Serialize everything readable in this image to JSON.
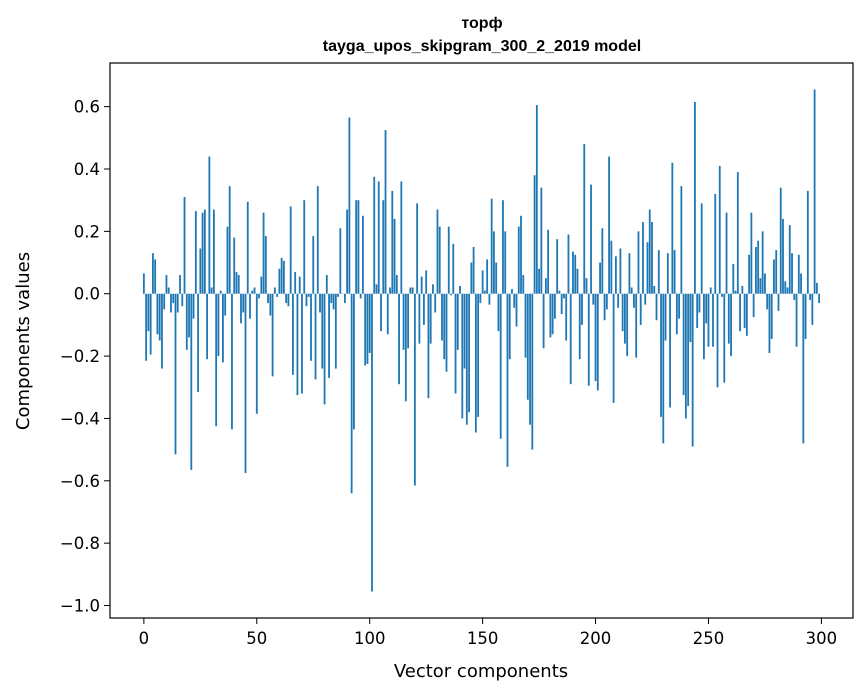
{
  "chart_data": {
    "type": "bar",
    "title_line1": "торф",
    "title_line2": "tayga_upos_skipgram_300_2_2019 model",
    "xlabel": "Vector components",
    "ylabel": "Components values",
    "xlim": [
      -15,
      314
    ],
    "ylim": [
      -1.04,
      0.74
    ],
    "xticks": [
      0,
      50,
      100,
      150,
      200,
      250,
      300
    ],
    "yticks": [
      -1.0,
      -0.8,
      -0.6,
      -0.4,
      -0.2,
      0.0,
      0.2,
      0.4,
      0.6
    ],
    "ytick_labels": [
      "−1.0",
      "−0.8",
      "−0.6",
      "−0.4",
      "−0.2",
      "0.0",
      "0.2",
      "0.4",
      "0.6"
    ],
    "xtick_labels": [
      "0",
      "50",
      "100",
      "150",
      "200",
      "250",
      "300"
    ],
    "bar_color": "#1f77b4",
    "values": [
      0.065,
      -0.215,
      -0.12,
      -0.195,
      0.13,
      0.11,
      -0.13,
      -0.15,
      -0.24,
      -0.05,
      0.06,
      0.02,
      -0.06,
      -0.03,
      -0.515,
      -0.06,
      0.06,
      -0.04,
      0.31,
      -0.18,
      -0.14,
      -0.565,
      -0.08,
      0.265,
      -0.315,
      0.145,
      0.26,
      0.27,
      -0.21,
      0.44,
      0.02,
      0.27,
      -0.425,
      -0.2,
      0.01,
      -0.22,
      -0.07,
      0.215,
      0.345,
      -0.435,
      0.18,
      0.07,
      0.06,
      -0.095,
      -0.06,
      -0.575,
      0.295,
      -0.08,
      0.01,
      0.02,
      -0.385,
      -0.015,
      0.055,
      0.26,
      0.185,
      -0.03,
      -0.07,
      -0.265,
      0.02,
      -0.01,
      0.08,
      0.115,
      0.105,
      -0.03,
      -0.04,
      0.28,
      -0.26,
      0.07,
      -0.325,
      0.055,
      -0.32,
      0.3,
      -0.04,
      -0.01,
      -0.215,
      0.185,
      -0.275,
      0.345,
      -0.06,
      -0.24,
      -0.355,
      0.06,
      -0.27,
      -0.03,
      -0.05,
      -0.24,
      -0.01,
      0.21,
      0.0,
      -0.03,
      0.27,
      0.565,
      -0.64,
      -0.435,
      0.3,
      0.3,
      -0.015,
      0.25,
      -0.23,
      -0.225,
      -0.19,
      -0.955,
      0.375,
      0.03,
      0.36,
      -0.12,
      0.3,
      0.525,
      -0.13,
      0.02,
      0.33,
      0.24,
      0.06,
      -0.29,
      0.36,
      -0.18,
      -0.345,
      -0.175,
      0.02,
      0.02,
      -0.615,
      0.29,
      -0.16,
      0.055,
      -0.1,
      0.075,
      -0.335,
      -0.16,
      0.03,
      -0.06,
      0.27,
      0.215,
      -0.15,
      -0.21,
      -0.25,
      0.215,
      -0.005,
      0.16,
      -0.32,
      -0.18,
      0.025,
      -0.4,
      -0.24,
      -0.42,
      -0.38,
      0.1,
      0.15,
      -0.445,
      -0.395,
      -0.03,
      0.075,
      0.01,
      0.11,
      -0.035,
      0.305,
      0.2,
      0.1,
      -0.12,
      -0.465,
      0.3,
      0.2,
      -0.555,
      -0.21,
      0.015,
      -0.045,
      -0.105,
      0.215,
      0.25,
      0.06,
      -0.205,
      -0.34,
      -0.42,
      -0.5,
      0.38,
      0.605,
      0.08,
      0.34,
      -0.175,
      0.05,
      0.205,
      -0.14,
      -0.13,
      -0.08,
      0.175,
      0.01,
      -0.065,
      -0.015,
      -0.15,
      0.19,
      -0.29,
      0.135,
      0.125,
      0.08,
      -0.21,
      -0.1,
      0.48,
      0.05,
      -0.295,
      0.35,
      -0.035,
      -0.28,
      -0.31,
      0.1,
      0.21,
      -0.085,
      -0.05,
      0.44,
      0.17,
      -0.35,
      0.12,
      -0.045,
      0.145,
      -0.12,
      -0.16,
      -0.2,
      0.13,
      0.02,
      -0.045,
      -0.205,
      0.2,
      -0.1,
      0.23,
      -0.035,
      0.165,
      0.27,
      0.23,
      0.025,
      -0.085,
      0.14,
      -0.395,
      -0.48,
      -0.15,
      0.13,
      -0.365,
      0.42,
      0.14,
      -0.13,
      -0.08,
      0.345,
      -0.325,
      -0.4,
      -0.36,
      -0.155,
      -0.49,
      0.615,
      -0.11,
      -0.06,
      0.29,
      -0.21,
      -0.095,
      -0.17,
      0.02,
      -0.17,
      0.32,
      -0.3,
      0.41,
      -0.01,
      -0.285,
      0.26,
      -0.16,
      -0.2,
      0.095,
      0.01,
      0.39,
      -0.12,
      0.025,
      -0.11,
      -0.135,
      0.125,
      0.26,
      -0.075,
      0.15,
      0.17,
      0.05,
      0.2,
      0.065,
      -0.05,
      -0.19,
      -0.145,
      0.11,
      0.14,
      -0.055,
      0.34,
      0.24,
      0.04,
      0.02,
      0.22,
      0.13,
      -0.02,
      -0.17,
      0.125,
      0.065,
      -0.48,
      -0.145,
      0.33,
      -0.02,
      -0.1,
      0.655,
      0.035,
      -0.03
    ]
  }
}
